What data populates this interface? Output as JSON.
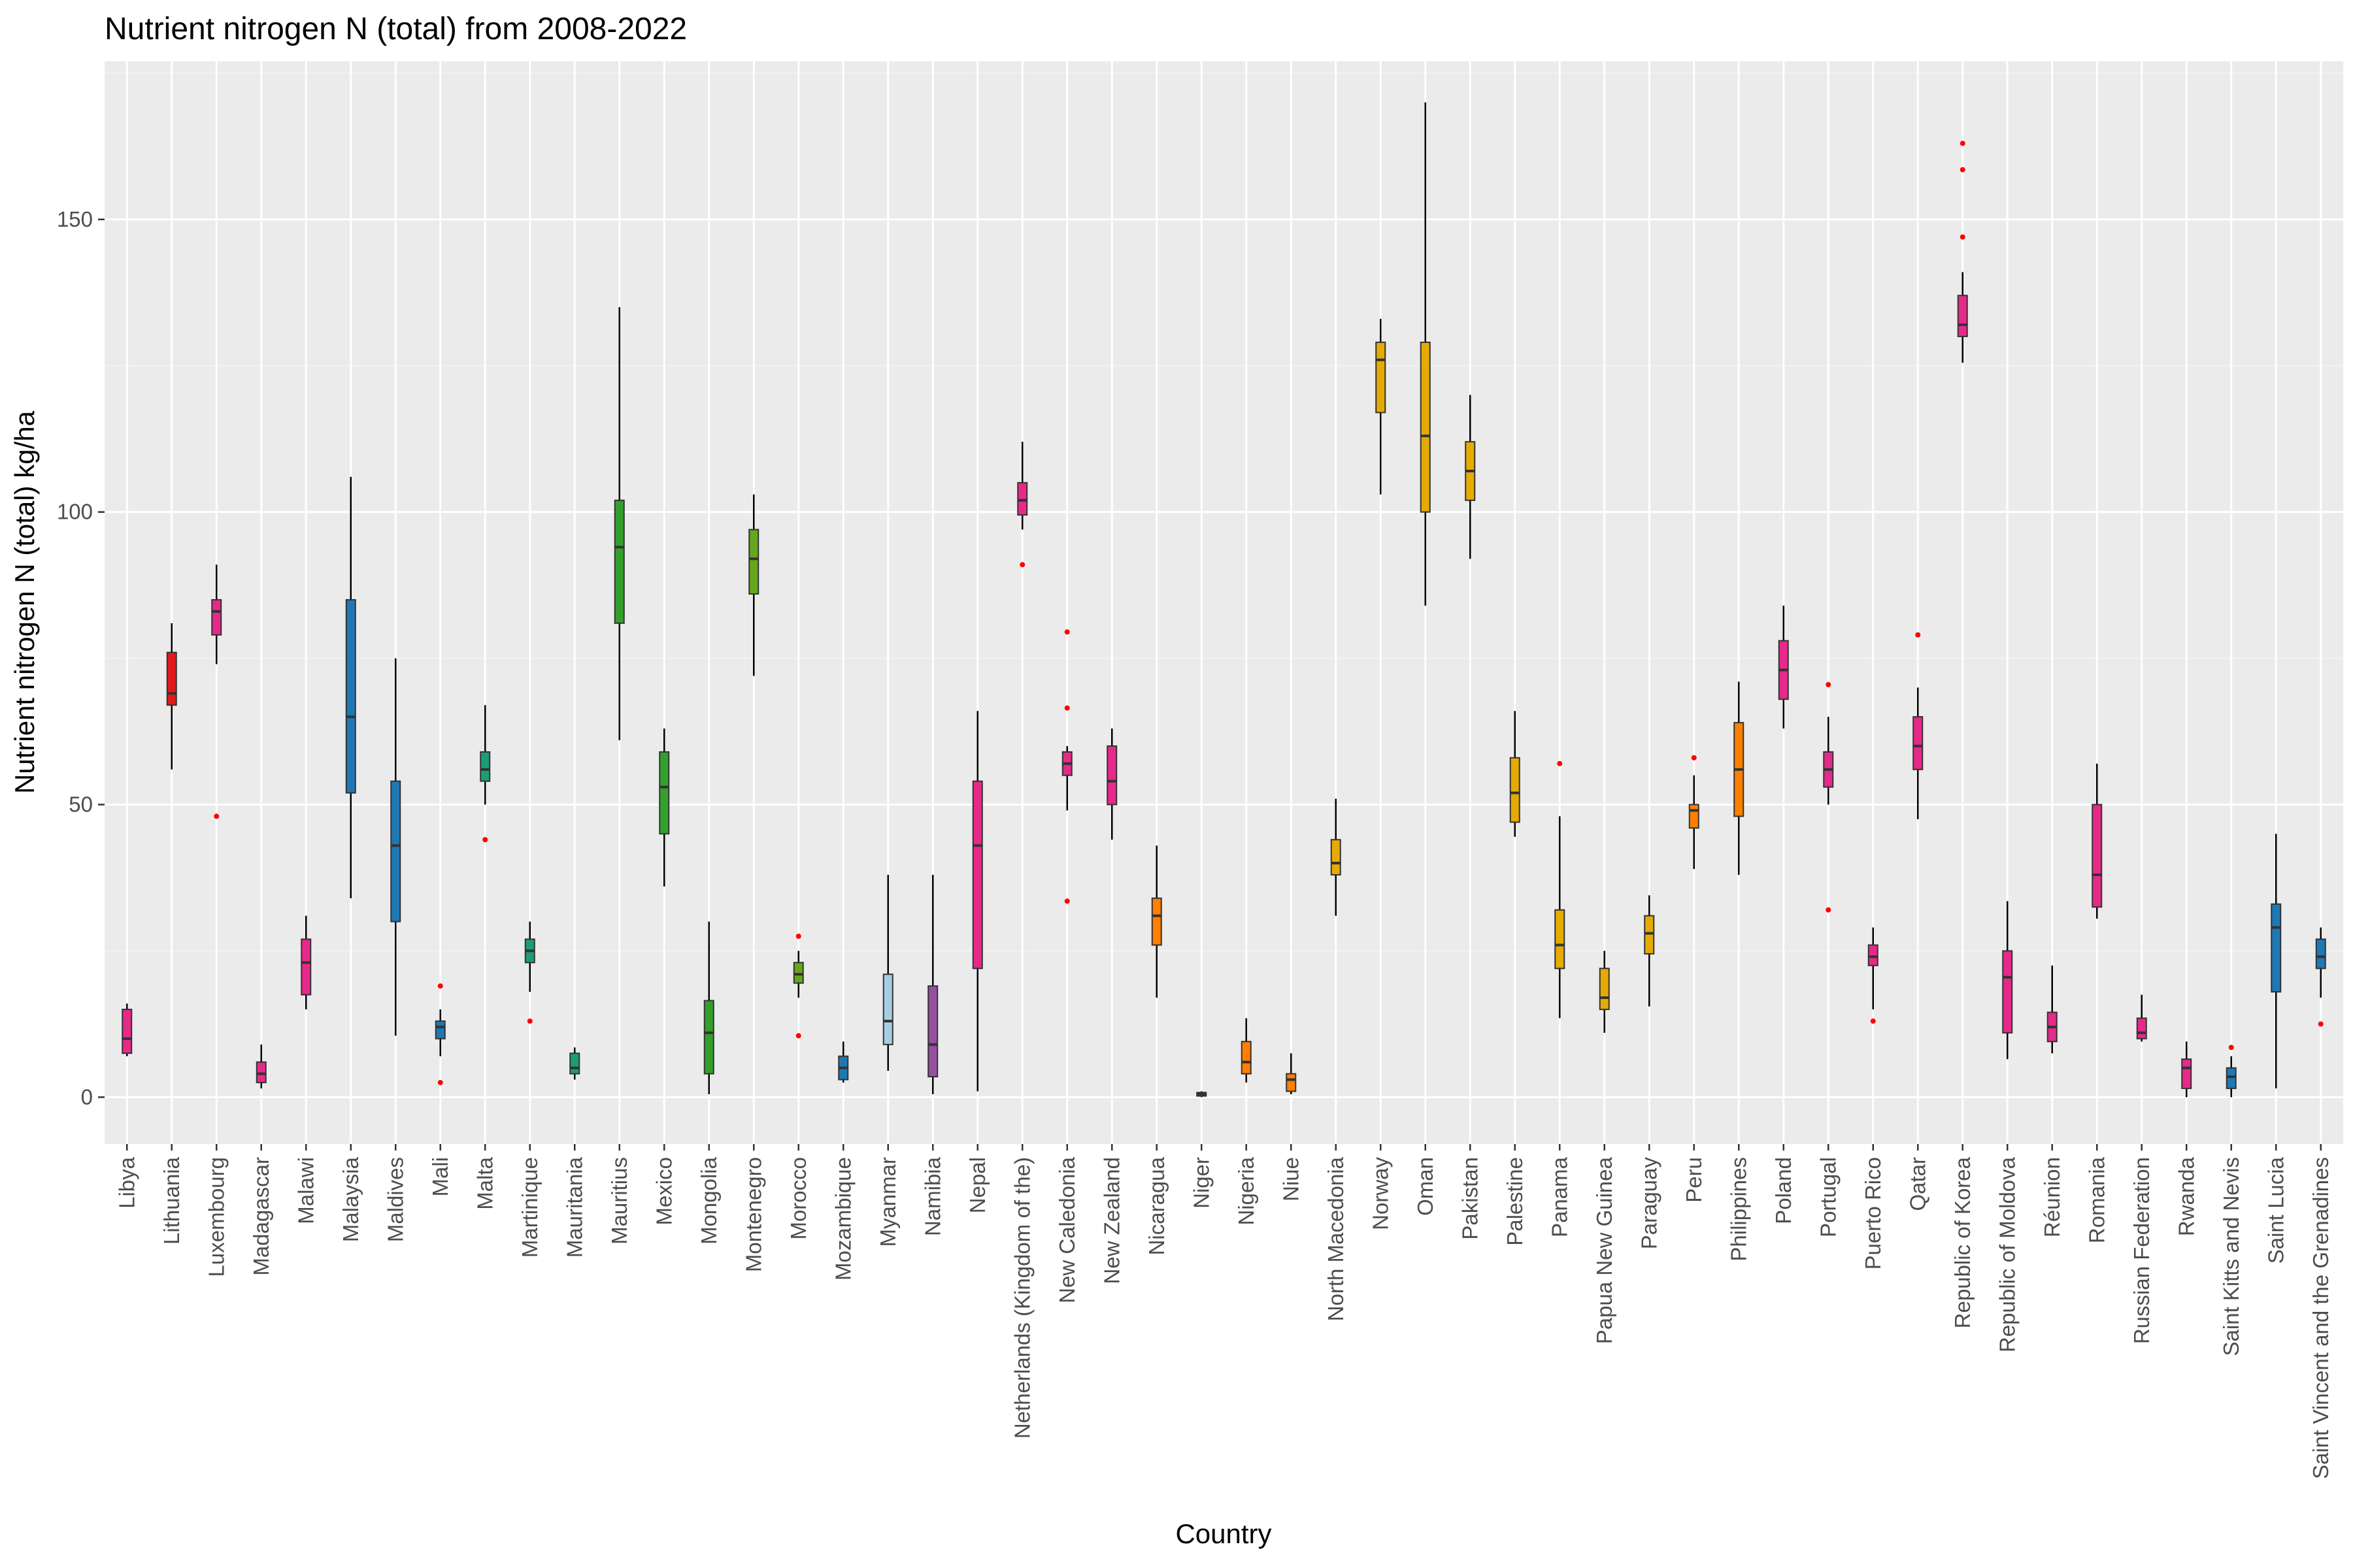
{
  "chart_data": {
    "type": "boxplot",
    "title": "Nutrient nitrogen N (total) from 2008-2022",
    "xlabel": "Country",
    "ylabel": "Nutrient nitrogen N (total) kg/ha",
    "ylim": [
      -8,
      177
    ],
    "yticks": [
      0,
      50,
      100,
      150
    ],
    "grid": true,
    "legend": "none",
    "colors": {
      "panel": "#ebebeb",
      "grid_major": "#ffffff",
      "grid_minor": "#f3f3f3",
      "outlier": "#ff0000",
      "whisker": "#000000",
      "axis_text": "#4d4d4d"
    },
    "categories": [
      "Libya",
      "Lithuania",
      "Luxembourg",
      "Madagascar",
      "Malawi",
      "Malaysia",
      "Maldives",
      "Mali",
      "Malta",
      "Martinique",
      "Mauritania",
      "Mauritius",
      "Mexico",
      "Mongolia",
      "Montenegro",
      "Morocco",
      "Mozambique",
      "Myanmar",
      "Namibia",
      "Nepal",
      "Netherlands (Kingdom of the)",
      "New Caledonia",
      "New Zealand",
      "Nicaragua",
      "Niger",
      "Nigeria",
      "Niue",
      "North Macedonia",
      "Norway",
      "Oman",
      "Pakistan",
      "Palestine",
      "Panama",
      "Papua New Guinea",
      "Paraguay",
      "Peru",
      "Philippines",
      "Poland",
      "Portugal",
      "Puerto Rico",
      "Qatar",
      "Republic of Korea",
      "Republic of Moldova",
      "Réunion",
      "Romania",
      "Russian Federation",
      "Rwanda",
      "Saint Kitts and Nevis",
      "Saint Lucia",
      "Saint Vincent and the Grenadines"
    ],
    "boxes": [
      {
        "min": 7,
        "q1": 7.5,
        "median": 10,
        "q3": 15,
        "max": 16,
        "color": "#e7298a",
        "outliers": []
      },
      {
        "min": 56,
        "q1": 67,
        "median": 69,
        "q3": 76,
        "max": 81,
        "color": "#e31a1c",
        "outliers": []
      },
      {
        "min": 74,
        "q1": 79,
        "median": 83,
        "q3": 85,
        "max": 91,
        "color": "#e7298a",
        "outliers": [
          48
        ]
      },
      {
        "min": 1.5,
        "q1": 2.5,
        "median": 4,
        "q3": 6,
        "max": 9,
        "color": "#e7298a",
        "outliers": []
      },
      {
        "min": 15,
        "q1": 17.5,
        "median": 23,
        "q3": 27,
        "max": 31,
        "color": "#e7298a",
        "outliers": []
      },
      {
        "min": 34,
        "q1": 52,
        "median": 65,
        "q3": 85,
        "max": 106,
        "color": "#1f78b4",
        "outliers": []
      },
      {
        "min": 10.5,
        "q1": 30,
        "median": 43,
        "q3": 54,
        "max": 75,
        "color": "#1f78b4",
        "outliers": []
      },
      {
        "min": 7,
        "q1": 10,
        "median": 12,
        "q3": 13,
        "max": 15,
        "color": "#1f78b4",
        "outliers": [
          19,
          2.5
        ]
      },
      {
        "min": 50,
        "q1": 54,
        "median": 56,
        "q3": 59,
        "max": 67,
        "color": "#1b9e77",
        "outliers": [
          44
        ]
      },
      {
        "min": 18,
        "q1": 23,
        "median": 25,
        "q3": 27,
        "max": 30,
        "color": "#1b9e77",
        "outliers": [
          13
        ]
      },
      {
        "min": 3,
        "q1": 4,
        "median": 5,
        "q3": 7.5,
        "max": 8.5,
        "color": "#1b9e77",
        "outliers": []
      },
      {
        "min": 61,
        "q1": 81,
        "median": 94,
        "q3": 102,
        "max": 135,
        "color": "#33a02c",
        "outliers": []
      },
      {
        "min": 36,
        "q1": 45,
        "median": 53,
        "q3": 59,
        "max": 63,
        "color": "#33a02c",
        "outliers": []
      },
      {
        "min": 0.5,
        "q1": 4,
        "median": 11,
        "q3": 16.5,
        "max": 30,
        "color": "#33a02c",
        "outliers": []
      },
      {
        "min": 72,
        "q1": 86,
        "median": 92,
        "q3": 97,
        "max": 103,
        "color": "#66a61e",
        "outliers": []
      },
      {
        "min": 17,
        "q1": 19.5,
        "median": 21,
        "q3": 23,
        "max": 25,
        "color": "#66a61e",
        "outliers": [
          27.5,
          10.5
        ]
      },
      {
        "min": 2.5,
        "q1": 3,
        "median": 5,
        "q3": 7,
        "max": 9.5,
        "color": "#1f78b4",
        "outliers": []
      },
      {
        "min": 4.5,
        "q1": 9,
        "median": 13,
        "q3": 21,
        "max": 38,
        "color": "#a6cee3",
        "outliers": []
      },
      {
        "min": 0.5,
        "q1": 3.5,
        "median": 9,
        "q3": 19,
        "max": 38,
        "color": "#984ea3",
        "outliers": []
      },
      {
        "min": 1,
        "q1": 22,
        "median": 43,
        "q3": 54,
        "max": 66,
        "color": "#e7298a",
        "outliers": []
      },
      {
        "min": 97,
        "q1": 99.5,
        "median": 102,
        "q3": 105,
        "max": 112,
        "color": "#e7298a",
        "outliers": [
          91
        ]
      },
      {
        "min": 49,
        "q1": 55,
        "median": 57,
        "q3": 59,
        "max": 60,
        "color": "#e7298a",
        "outliers": [
          79.5,
          66.5,
          33.5
        ]
      },
      {
        "min": 44,
        "q1": 50,
        "median": 54,
        "q3": 60,
        "max": 63,
        "color": "#e7298a",
        "outliers": []
      },
      {
        "min": 17,
        "q1": 26,
        "median": 31,
        "q3": 34,
        "max": 43,
        "color": "#ff7f00",
        "outliers": []
      },
      {
        "min": 0,
        "q1": 0.2,
        "median": 0.5,
        "q3": 0.8,
        "max": 1,
        "color": "#ff7f00",
        "outliers": []
      },
      {
        "min": 2.5,
        "q1": 4,
        "median": 6,
        "q3": 9.5,
        "max": 13.5,
        "color": "#ff7f00",
        "outliers": []
      },
      {
        "min": 0.5,
        "q1": 1,
        "median": 3,
        "q3": 4,
        "max": 7.5,
        "color": "#ff7f00",
        "outliers": []
      },
      {
        "min": 31,
        "q1": 38,
        "median": 40,
        "q3": 44,
        "max": 51,
        "color": "#e6ab02",
        "outliers": []
      },
      {
        "min": 103,
        "q1": 117,
        "median": 126,
        "q3": 129,
        "max": 133,
        "color": "#e6ab02",
        "outliers": []
      },
      {
        "min": 84,
        "q1": 100,
        "median": 113,
        "q3": 129,
        "max": 170,
        "color": "#e6ab02",
        "outliers": []
      },
      {
        "min": 92,
        "q1": 102,
        "median": 107,
        "q3": 112,
        "max": 120,
        "color": "#e6ab02",
        "outliers": []
      },
      {
        "min": 44.5,
        "q1": 47,
        "median": 52,
        "q3": 58,
        "max": 66,
        "color": "#e6ab02",
        "outliers": []
      },
      {
        "min": 13.5,
        "q1": 22,
        "median": 26,
        "q3": 32,
        "max": 48,
        "color": "#e6ab02",
        "outliers": [
          57
        ]
      },
      {
        "min": 11,
        "q1": 15,
        "median": 17,
        "q3": 22,
        "max": 25,
        "color": "#e6ab02",
        "outliers": []
      },
      {
        "min": 15.5,
        "q1": 24.5,
        "median": 28,
        "q3": 31,
        "max": 34.5,
        "color": "#e6ab02",
        "outliers": []
      },
      {
        "min": 39,
        "q1": 46,
        "median": 49,
        "q3": 50,
        "max": 55,
        "color": "#ff7f00",
        "outliers": [
          58
        ]
      },
      {
        "min": 38,
        "q1": 48,
        "median": 56,
        "q3": 64,
        "max": 71,
        "color": "#ff7f00",
        "outliers": []
      },
      {
        "min": 63,
        "q1": 68,
        "median": 73,
        "q3": 78,
        "max": 84,
        "color": "#e7298a",
        "outliers": []
      },
      {
        "min": 50,
        "q1": 53,
        "median": 56,
        "q3": 59,
        "max": 65,
        "color": "#e7298a",
        "outliers": [
          70.5,
          32
        ]
      },
      {
        "min": 15,
        "q1": 22.5,
        "median": 24,
        "q3": 26,
        "max": 29,
        "color": "#e7298a",
        "outliers": [
          13
        ]
      },
      {
        "min": 47.5,
        "q1": 56,
        "median": 60,
        "q3": 65,
        "max": 70,
        "color": "#e7298a",
        "outliers": [
          79
        ]
      },
      {
        "min": 125.5,
        "q1": 130,
        "median": 132,
        "q3": 137,
        "max": 141,
        "color": "#e7298a",
        "outliers": [
          163,
          158.5,
          147
        ]
      },
      {
        "min": 6.5,
        "q1": 11,
        "median": 20.5,
        "q3": 25,
        "max": 33.5,
        "color": "#e7298a",
        "outliers": []
      },
      {
        "min": 7.5,
        "q1": 9.5,
        "median": 12,
        "q3": 14.5,
        "max": 22.5,
        "color": "#e7298a",
        "outliers": []
      },
      {
        "min": 30.5,
        "q1": 32.5,
        "median": 38,
        "q3": 50,
        "max": 57,
        "color": "#e7298a",
        "outliers": []
      },
      {
        "min": 9.5,
        "q1": 10,
        "median": 11,
        "q3": 13.5,
        "max": 17.5,
        "color": "#e7298a",
        "outliers": []
      },
      {
        "min": 0,
        "q1": 1.5,
        "median": 5,
        "q3": 6.5,
        "max": 9.5,
        "color": "#e7298a",
        "outliers": []
      },
      {
        "min": 0,
        "q1": 1.5,
        "median": 3.5,
        "q3": 5,
        "max": 7,
        "color": "#1f78b4",
        "outliers": [
          8.5
        ]
      },
      {
        "min": 1.5,
        "q1": 18,
        "median": 29,
        "q3": 33,
        "max": 45,
        "color": "#1f78b4",
        "outliers": []
      },
      {
        "min": 17,
        "q1": 22,
        "median": 24,
        "q3": 27,
        "max": 29,
        "color": "#1f78b4",
        "outliers": [
          12.5
        ]
      }
    ]
  }
}
